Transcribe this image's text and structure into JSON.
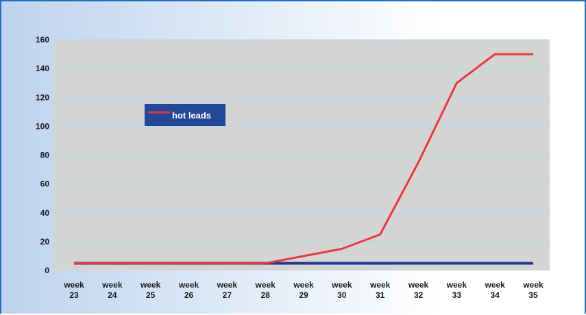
{
  "chart_data": {
    "type": "line",
    "categories": [
      "week 23",
      "week 24",
      "week 25",
      "week 26",
      "week 27",
      "week 28",
      "week 29",
      "week 30",
      "week 31",
      "week 32",
      "week 33",
      "week 34",
      "week 35"
    ],
    "series": [
      {
        "name": "hot leads",
        "color": "#e8383d",
        "values": [
          5,
          5,
          5,
          5,
          5,
          5,
          10,
          15,
          25,
          75,
          130,
          150,
          150
        ]
      },
      {
        "color": "#23388f",
        "values": [
          5,
          5,
          5,
          5,
          5,
          5,
          5,
          5,
          5,
          5,
          5,
          5,
          5
        ]
      }
    ],
    "yticks": [
      0,
      20,
      40,
      60,
      80,
      100,
      120,
      140,
      160
    ],
    "ylim": [
      0,
      160
    ],
    "grid": true,
    "legend_position": "upper-left-inside",
    "colors": {
      "plot_background": "#d4d4d4",
      "gridline": "#a8dce8",
      "legend_background": "#234799"
    }
  }
}
